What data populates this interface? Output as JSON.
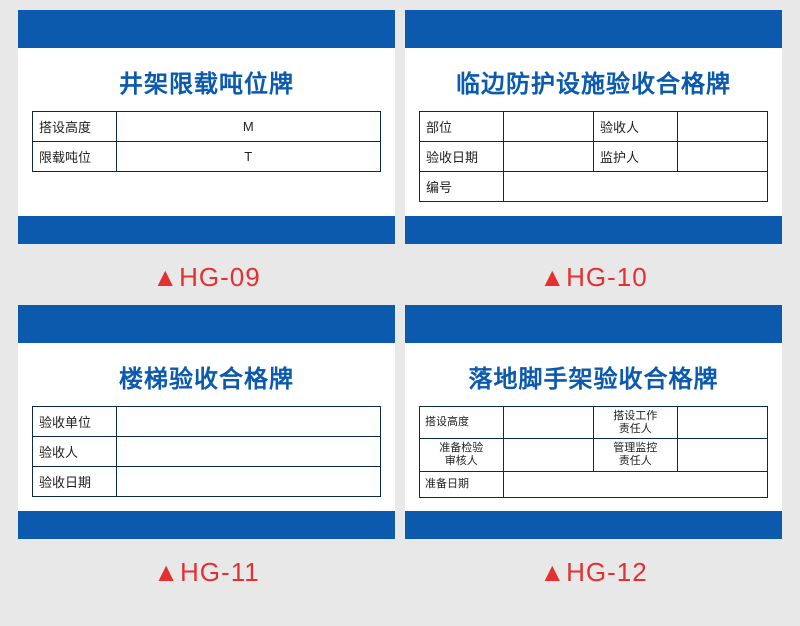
{
  "colors": {
    "blue": "#0b5aae",
    "red": "#e43030",
    "border": "#0b2b4e",
    "bg": "#e8e8e8"
  },
  "cards": [
    {
      "code": "▲HG-09",
      "title": "井架限载吨位牌",
      "rows": [
        [
          "搭设高度",
          "M"
        ],
        [
          "限载吨位",
          "T"
        ]
      ]
    },
    {
      "code": "▲HG-10",
      "title": "临边防护设施验收合格牌",
      "rows4": [
        [
          "部位",
          "",
          "验收人",
          ""
        ],
        [
          "验收日期",
          "",
          "监护人",
          ""
        ],
        [
          "编号",
          "",
          "",
          ""
        ]
      ]
    },
    {
      "code": "▲HG-11",
      "title": "楼梯验收合格牌",
      "rows": [
        [
          "验收单位",
          ""
        ],
        [
          "验收人",
          ""
        ],
        [
          "验收日期",
          ""
        ]
      ]
    },
    {
      "code": "▲HG-12",
      "title": "落地脚手架验收合格牌",
      "rows4": [
        [
          "搭设高度",
          "",
          "搭设工作\n责任人",
          ""
        ],
        [
          "准备检验\n审核人",
          "",
          "管理监控\n责任人",
          ""
        ],
        [
          "准备日期",
          "",
          "",
          ""
        ]
      ]
    }
  ]
}
